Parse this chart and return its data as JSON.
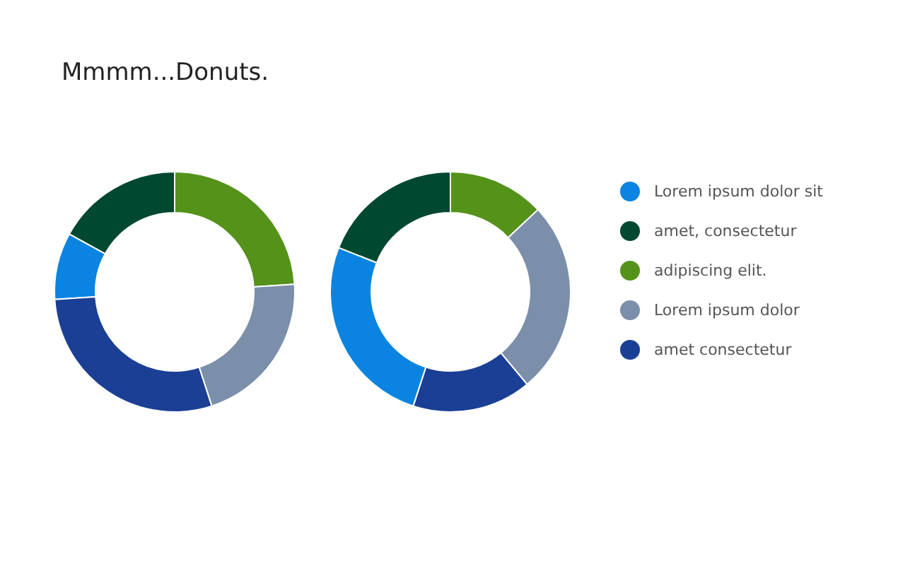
{
  "chart_data": {
    "type": "donut",
    "title": "Mmmm...Donuts.",
    "categories": [
      "Lorem ipsum dolor sit",
      "amet, consectetur",
      "adipiscing elit.",
      "Lorem ipsum dolor",
      "amet consectetur"
    ],
    "colors": [
      "#0a84e0",
      "#00482f",
      "#55921a",
      "#7b8faa",
      "#1b3f95"
    ],
    "legend": "right",
    "series": [
      {
        "values": [
          9,
          17,
          24,
          21,
          29
        ]
      },
      {
        "values": [
          26,
          19,
          13,
          26,
          16
        ]
      }
    ]
  }
}
